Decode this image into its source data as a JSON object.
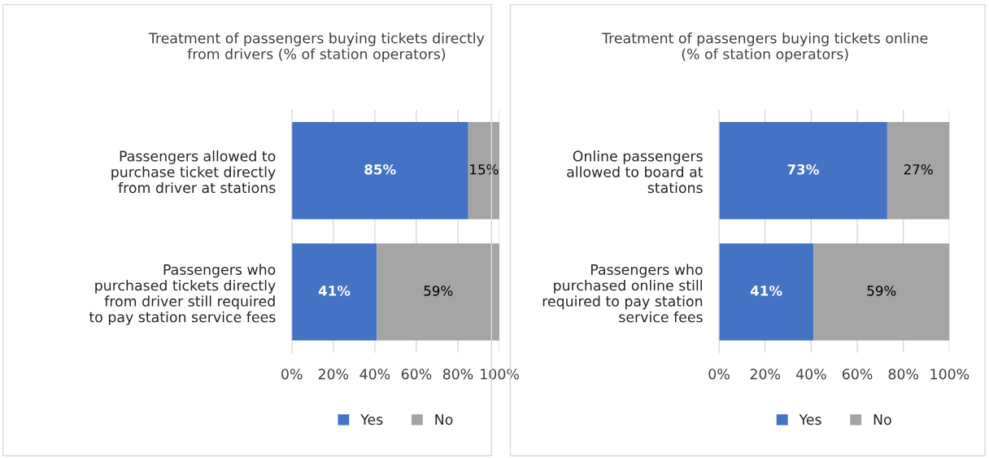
{
  "chart_data": [
    {
      "type": "bar",
      "orientation": "horizontal",
      "stacked": true,
      "title": "Treatment of passengers buying tickets directly\nfrom drivers (% of station operators)",
      "categories": [
        "Passengers allowed to\npurchase ticket directly\nfrom driver at stations",
        "Passengers who\npurchased tickets directly\nfrom driver still required\nto pay station service fees"
      ],
      "series": [
        {
          "name": "Yes",
          "color": "#4472c4",
          "values": [
            85,
            41
          ],
          "value_labels": [
            "85%",
            "41%"
          ]
        },
        {
          "name": "No",
          "color": "#a5a5a5",
          "values": [
            15,
            59
          ],
          "value_labels": [
            "15%",
            "59%"
          ]
        }
      ],
      "xlim": [
        0,
        100
      ],
      "xticks": [
        {
          "value": 0,
          "label": "0%"
        },
        {
          "value": 20,
          "label": "20%"
        },
        {
          "value": 40,
          "label": "40%"
        },
        {
          "value": 60,
          "label": "60%"
        },
        {
          "value": 80,
          "label": "80%"
        },
        {
          "value": 100,
          "label": "100%"
        }
      ],
      "grid": "x",
      "legend": "bottom"
    },
    {
      "type": "bar",
      "orientation": "horizontal",
      "stacked": true,
      "title": "Treatment of passengers buying tickets online\n(% of station operators)",
      "categories": [
        "Online passengers\nallowed to board at\nstations",
        "Passengers who\npurchased online still\nrequired to pay station\nservice fees"
      ],
      "series": [
        {
          "name": "Yes",
          "color": "#4472c4",
          "values": [
            73,
            41
          ],
          "value_labels": [
            "73%",
            "41%"
          ]
        },
        {
          "name": "No",
          "color": "#a5a5a5",
          "values": [
            27,
            59
          ],
          "value_labels": [
            "27%",
            "59%"
          ]
        }
      ],
      "xlim": [
        0,
        100
      ],
      "xticks": [
        {
          "value": 0,
          "label": "0%"
        },
        {
          "value": 20,
          "label": "20%"
        },
        {
          "value": 40,
          "label": "40%"
        },
        {
          "value": 60,
          "label": "60%"
        },
        {
          "value": 80,
          "label": "80%"
        },
        {
          "value": 100,
          "label": "100%"
        }
      ],
      "grid": "x",
      "legend": "bottom"
    }
  ]
}
